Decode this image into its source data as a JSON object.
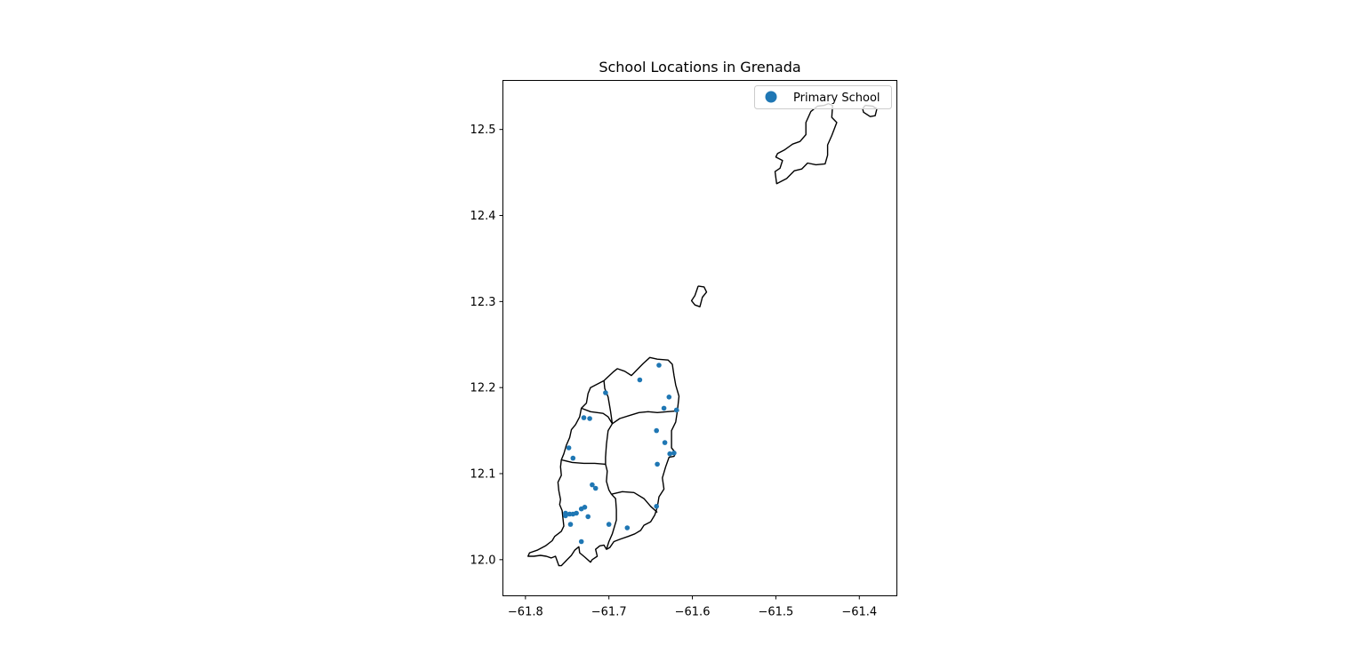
{
  "title": "School Locations in Grenada",
  "legend": {
    "entries": [
      {
        "label": "Primary School",
        "color": "#1f77b4",
        "marker": "circle"
      }
    ],
    "placement": "top-right"
  },
  "axes": {
    "xlim": [
      -61.827,
      -61.355
    ],
    "ylim": [
      11.958,
      12.557
    ],
    "xticks": [
      -61.8,
      -61.7,
      -61.6,
      -61.5,
      -61.4
    ],
    "xtick_labels": [
      "−61.8",
      "−61.7",
      "−61.6",
      "−61.5",
      "−61.4"
    ],
    "yticks": [
      12.0,
      12.1,
      12.2,
      12.3,
      12.4,
      12.5
    ],
    "ytick_labels": [
      "12.0",
      "12.1",
      "12.2",
      "12.3",
      "12.4",
      "12.5"
    ],
    "grid": false
  },
  "colors": {
    "point": "#1f77b4",
    "boundary": "#000000",
    "legend_border": "#cccccc"
  },
  "chart_data": {
    "type": "scatter",
    "title": "School Locations in Grenada",
    "xlabel": "",
    "ylabel": "",
    "xlim": [
      -61.827,
      -61.355
    ],
    "ylim": [
      11.958,
      12.557
    ],
    "grid": false,
    "series": [
      {
        "name": "Primary School",
        "points": [
          [
            -61.64,
            12.226
          ],
          [
            -61.663,
            12.209
          ],
          [
            -61.704,
            12.194
          ],
          [
            -61.628,
            12.189
          ],
          [
            -61.634,
            12.176
          ],
          [
            -61.619,
            12.174
          ],
          [
            -61.73,
            12.165
          ],
          [
            -61.723,
            12.164
          ],
          [
            -61.643,
            12.15
          ],
          [
            -61.633,
            12.136
          ],
          [
            -61.627,
            12.123
          ],
          [
            -61.622,
            12.124
          ],
          [
            -61.748,
            12.13
          ],
          [
            -61.743,
            12.118
          ],
          [
            -61.642,
            12.111
          ],
          [
            -61.72,
            12.087
          ],
          [
            -61.716,
            12.083
          ],
          [
            -61.733,
            12.059
          ],
          [
            -61.729,
            12.061
          ],
          [
            -61.643,
            12.062
          ],
          [
            -61.752,
            12.054
          ],
          [
            -61.747,
            12.053
          ],
          [
            -61.752,
            12.051
          ],
          [
            -61.743,
            12.053
          ],
          [
            -61.739,
            12.054
          ],
          [
            -61.725,
            12.05
          ],
          [
            -61.746,
            12.041
          ],
          [
            -61.7,
            12.041
          ],
          [
            -61.678,
            12.037
          ],
          [
            -61.733,
            12.021
          ]
        ]
      }
    ]
  },
  "map": {
    "boundaries": [
      {
        "name": "north-island",
        "points": [
          [
            -61.437,
            12.53
          ],
          [
            -61.432,
            12.528
          ],
          [
            -61.433,
            12.514
          ],
          [
            -61.427,
            12.508
          ],
          [
            -61.433,
            12.493
          ],
          [
            -61.438,
            12.482
          ],
          [
            -61.438,
            12.47
          ],
          [
            -61.441,
            12.46
          ],
          [
            -61.452,
            12.459
          ],
          [
            -61.462,
            12.461
          ],
          [
            -61.469,
            12.454
          ],
          [
            -61.478,
            12.452
          ],
          [
            -61.487,
            12.443
          ],
          [
            -61.499,
            12.437
          ],
          [
            -61.501,
            12.451
          ],
          [
            -61.495,
            12.455
          ],
          [
            -61.492,
            12.464
          ],
          [
            -61.5,
            12.468
          ],
          [
            -61.498,
            12.472
          ],
          [
            -61.49,
            12.476
          ],
          [
            -61.48,
            12.483
          ],
          [
            -61.471,
            12.486
          ],
          [
            -61.464,
            12.494
          ],
          [
            -61.464,
            12.508
          ],
          [
            -61.458,
            12.521
          ],
          [
            -61.45,
            12.527
          ],
          [
            -61.442,
            12.528
          ],
          [
            -61.437,
            12.53
          ]
        ]
      },
      {
        "name": "north-east-islet",
        "points": [
          [
            -61.393,
            12.528
          ],
          [
            -61.384,
            12.527
          ],
          [
            -61.379,
            12.524
          ],
          [
            -61.381,
            12.516
          ],
          [
            -61.387,
            12.515
          ],
          [
            -61.395,
            12.52
          ],
          [
            -61.396,
            12.524
          ],
          [
            -61.393,
            12.528
          ]
        ]
      },
      {
        "name": "middle-islet",
        "points": [
          [
            -61.593,
            12.318
          ],
          [
            -61.586,
            12.317
          ],
          [
            -61.583,
            12.311
          ],
          [
            -61.588,
            12.305
          ],
          [
            -61.591,
            12.294
          ],
          [
            -61.597,
            12.296
          ],
          [
            -61.601,
            12.301
          ],
          [
            -61.597,
            12.307
          ],
          [
            -61.593,
            12.318
          ]
        ]
      },
      {
        "name": "grenada-outline",
        "points": [
          [
            -61.659,
            12.228
          ],
          [
            -61.651,
            12.235
          ],
          [
            -61.642,
            12.233
          ],
          [
            -61.629,
            12.232
          ],
          [
            -61.624,
            12.227
          ],
          [
            -61.622,
            12.214
          ],
          [
            -61.62,
            12.203
          ],
          [
            -61.616,
            12.19
          ],
          [
            -61.618,
            12.173
          ],
          [
            -61.62,
            12.16
          ],
          [
            -61.625,
            12.15
          ],
          [
            -61.625,
            12.14
          ],
          [
            -61.625,
            12.13
          ],
          [
            -61.62,
            12.124
          ],
          [
            -61.622,
            12.12
          ],
          [
            -61.628,
            12.119
          ],
          [
            -61.632,
            12.108
          ],
          [
            -61.636,
            12.095
          ],
          [
            -61.634,
            12.082
          ],
          [
            -61.64,
            12.073
          ],
          [
            -61.642,
            12.061
          ],
          [
            -61.645,
            12.052
          ],
          [
            -61.65,
            12.044
          ],
          [
            -61.658,
            12.04
          ],
          [
            -61.662,
            12.034
          ],
          [
            -61.669,
            12.03
          ],
          [
            -61.677,
            12.027
          ],
          [
            -61.686,
            12.024
          ],
          [
            -61.694,
            12.021
          ],
          [
            -61.699,
            12.014
          ],
          [
            -61.703,
            12.012
          ],
          [
            -61.706,
            12.017
          ],
          [
            -61.711,
            12.016
          ],
          [
            -61.716,
            12.012
          ],
          [
            -61.714,
            12.004
          ],
          [
            -61.72,
            12.0
          ],
          [
            -61.722,
            11.997
          ],
          [
            -61.729,
            12.003
          ],
          [
            -61.735,
            12.008
          ],
          [
            -61.736,
            12.015
          ],
          [
            -61.741,
            12.011
          ],
          [
            -61.745,
            12.005
          ],
          [
            -61.75,
            12.0
          ],
          [
            -61.757,
            11.993
          ],
          [
            -61.76,
            11.993
          ],
          [
            -61.764,
            12.004
          ],
          [
            -61.769,
            12.002
          ],
          [
            -61.775,
            12.004
          ],
          [
            -61.782,
            12.005
          ],
          [
            -61.79,
            12.004
          ],
          [
            -61.797,
            12.004
          ],
          [
            -61.795,
            12.008
          ],
          [
            -61.786,
            12.011
          ],
          [
            -61.776,
            12.016
          ],
          [
            -61.768,
            12.022
          ],
          [
            -61.765,
            12.027
          ],
          [
            -61.757,
            12.033
          ],
          [
            -61.754,
            12.039
          ],
          [
            -61.755,
            12.047
          ],
          [
            -61.756,
            12.057
          ],
          [
            -61.759,
            12.064
          ],
          [
            -61.758,
            12.07
          ],
          [
            -61.76,
            12.08
          ],
          [
            -61.761,
            12.09
          ],
          [
            -61.757,
            12.098
          ],
          [
            -61.758,
            12.108
          ],
          [
            -61.757,
            12.116
          ],
          [
            -61.754,
            12.123
          ],
          [
            -61.751,
            12.133
          ],
          [
            -61.747,
            12.142
          ],
          [
            -61.745,
            12.151
          ],
          [
            -61.74,
            12.157
          ],
          [
            -61.735,
            12.166
          ],
          [
            -61.733,
            12.176
          ],
          [
            -61.727,
            12.182
          ],
          [
            -61.725,
            12.193
          ],
          [
            -61.722,
            12.2
          ],
          [
            -61.706,
            12.208
          ],
          [
            -61.695,
            12.218
          ],
          [
            -61.69,
            12.222
          ],
          [
            -61.681,
            12.219
          ],
          [
            -61.673,
            12.214
          ],
          [
            -61.667,
            12.22
          ],
          [
            -61.659,
            12.228
          ]
        ]
      },
      {
        "name": "parish-border-north",
        "points": [
          [
            -61.706,
            12.208
          ],
          [
            -61.705,
            12.199
          ],
          [
            -61.701,
            12.189
          ],
          [
            -61.698,
            12.172
          ],
          [
            -61.696,
            12.158
          ],
          [
            -61.687,
            12.164
          ],
          [
            -61.674,
            12.168
          ],
          [
            -61.664,
            12.171
          ],
          [
            -61.653,
            12.172
          ],
          [
            -61.642,
            12.171
          ],
          [
            -61.63,
            12.172
          ],
          [
            -61.616,
            12.173
          ]
        ]
      },
      {
        "name": "parish-border-mid-north",
        "points": [
          [
            -61.733,
            12.176
          ],
          [
            -61.722,
            12.172
          ],
          [
            -61.707,
            12.17
          ],
          [
            -61.701,
            12.166
          ],
          [
            -61.696,
            12.158
          ]
        ]
      },
      {
        "name": "parish-border-central",
        "points": [
          [
            -61.696,
            12.158
          ],
          [
            -61.701,
            12.15
          ],
          [
            -61.703,
            12.134
          ],
          [
            -61.704,
            12.119
          ],
          [
            -61.704,
            12.111
          ]
        ]
      },
      {
        "name": "parish-border-west",
        "points": [
          [
            -61.757,
            12.116
          ],
          [
            -61.744,
            12.113
          ],
          [
            -61.73,
            12.112
          ],
          [
            -61.717,
            12.112
          ],
          [
            -61.704,
            12.111
          ],
          [
            -61.702,
            12.103
          ],
          [
            -61.703,
            12.091
          ],
          [
            -61.7,
            12.081
          ],
          [
            -61.697,
            12.076
          ]
        ]
      },
      {
        "name": "parish-border-south-west",
        "points": [
          [
            -61.697,
            12.076
          ],
          [
            -61.692,
            12.071
          ],
          [
            -61.691,
            12.058
          ],
          [
            -61.691,
            12.046
          ],
          [
            -61.696,
            12.03
          ],
          [
            -61.7,
            12.021
          ],
          [
            -61.703,
            12.012
          ]
        ]
      },
      {
        "name": "parish-border-south-east",
        "points": [
          [
            -61.697,
            12.076
          ],
          [
            -61.684,
            12.079
          ],
          [
            -61.67,
            12.078
          ],
          [
            -61.658,
            12.071
          ],
          [
            -61.65,
            12.062
          ],
          [
            -61.642,
            12.055
          ]
        ]
      }
    ]
  }
}
